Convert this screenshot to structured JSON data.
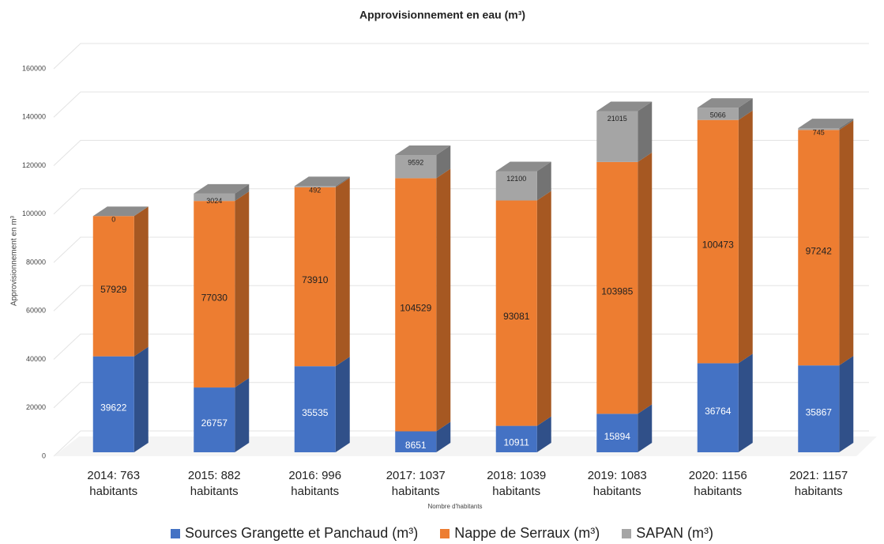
{
  "chart_data": {
    "type": "bar3d_stacked",
    "title": "Approvisionnement en eau (m³)",
    "y_label": "Approvisionnement en m³",
    "x_label": "Nombre d'habitants",
    "categories": [
      "2014: 763 habitants",
      "2015: 882 habitants",
      "2016: 996 habitants",
      "2017: 1037 habitants",
      "2018: 1039 habitants",
      "2019: 1083 habitants",
      "2020: 1156 habitants",
      "2021: 1157 habitants"
    ],
    "series": [
      {
        "name": "Sources Grangette et Panchaud (m³)",
        "color": "#4472c4",
        "values": [
          39622,
          26757,
          35535,
          8651,
          10911,
          15894,
          36764,
          35867
        ]
      },
      {
        "name": "Nappe de Serraux (m³)",
        "color": "#ed7d31",
        "values": [
          57929,
          77030,
          73910,
          104529,
          93081,
          103985,
          100473,
          97242
        ]
      },
      {
        "name": "SAPAN (m³)",
        "color": "#a5a5a5",
        "values": [
          0,
          3024,
          492,
          9592,
          12100,
          21015,
          5066,
          745
        ]
      }
    ],
    "ylim": [
      0,
      160000
    ],
    "yticks": [
      0,
      20000,
      40000,
      60000,
      80000,
      100000,
      120000,
      140000,
      160000
    ],
    "grid": true,
    "legend": "bottom"
  }
}
